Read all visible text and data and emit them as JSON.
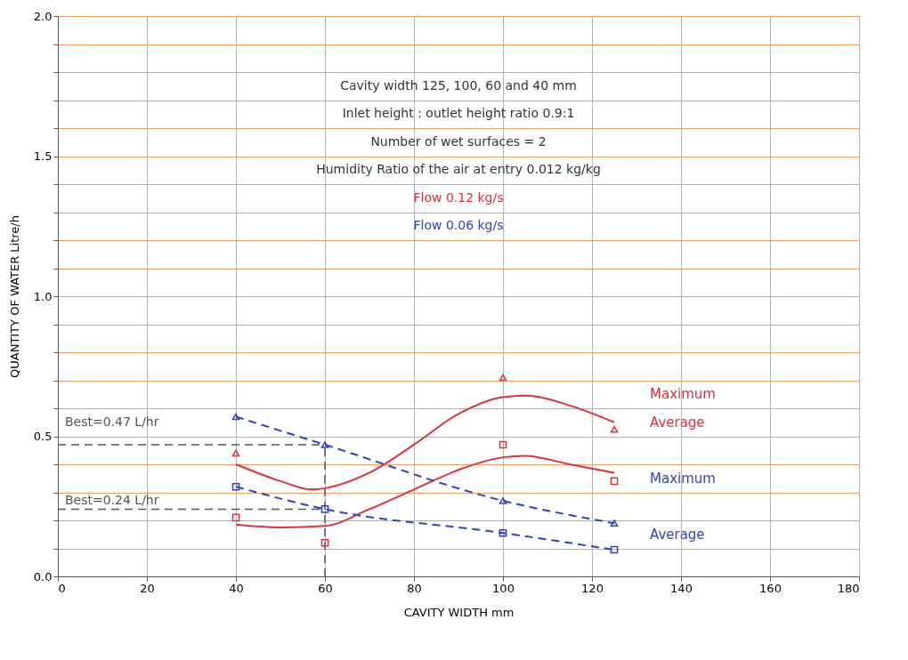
{
  "chart_data": {
    "type": "line",
    "xlabel": "CAVITY WIDTH   mm",
    "ylabel": "QUANTITY OF WATER   Litre/h",
    "annotations": [
      "Cavity width 125, 100, 60 and 40 mm",
      "Inlet height : outlet height ratio 0.9:1",
      "Number of wet surfaces = 2",
      "Humidity Ratio of the air at entry 0.012 kg/kg",
      "Flow  0.12 kg/s",
      "Flow  0.06 kg/s"
    ],
    "series": [
      {
        "type": "scatter",
        "marker": "triangle",
        "color": "#e0303c",
        "x": [
          40,
          100,
          125
        ],
        "values": [
          0.44,
          0.71,
          0.525
        ]
      },
      {
        "name": "Maximum",
        "color": "#e0303c",
        "line_style": "solid",
        "marker": "none",
        "x": [
          40,
          50,
          57,
          70,
          80,
          90,
          100,
          105,
          115,
          125
        ],
        "values": [
          0.4,
          0.34,
          0.31,
          0.37,
          0.47,
          0.58,
          0.64,
          0.645,
          0.61,
          0.55
        ]
      },
      {
        "type": "scatter",
        "marker": "square",
        "color": "#e0303c",
        "x": [
          40,
          60,
          100,
          125
        ],
        "values": [
          0.21,
          0.12,
          0.47,
          0.34
        ]
      },
      {
        "name": "Average",
        "color": "#e0303c",
        "line_style": "solid",
        "marker": "none",
        "x": [
          40,
          50,
          60,
          70,
          80,
          90,
          100,
          105,
          115,
          125
        ],
        "values": [
          0.185,
          0.175,
          0.18,
          0.24,
          0.31,
          0.38,
          0.425,
          0.43,
          0.4,
          0.37
        ]
      },
      {
        "name": "Maximum",
        "color": "#3040c0",
        "line_style": "dashed",
        "marker": "triangle",
        "x": [
          40,
          60,
          100,
          125
        ],
        "values": [
          0.57,
          0.47,
          0.27,
          0.19
        ]
      },
      {
        "name": "Average",
        "color": "#3040c0",
        "line_style": "dashed",
        "marker": "square",
        "x": [
          40,
          60,
          100,
          125
        ],
        "values": [
          0.32,
          0.24,
          0.155,
          0.095
        ]
      }
    ],
    "ref_lines": [
      {
        "axis": "y",
        "value": 0.47,
        "label": "Best=0.47 L/hr",
        "color": "#555555",
        "line_style": "dashed"
      },
      {
        "axis": "y",
        "value": 0.24,
        "label": "Best=0.24 L/hr",
        "color": "#555555",
        "line_style": "dashed"
      },
      {
        "axis": "x",
        "value": 60,
        "color": "#555555",
        "line_style": "dashed"
      }
    ],
    "xlim": [
      0,
      180
    ],
    "xticks": [
      0,
      20,
      40,
      60,
      80,
      100,
      120,
      140,
      160,
      180
    ],
    "ylim": [
      0,
      2
    ],
    "yticks": [
      {
        "value": 0,
        "label": "0.0"
      },
      {
        "value": 0.1,
        "label": null
      },
      {
        "value": 0.2,
        "label": null
      },
      {
        "value": 0.3,
        "label": null
      },
      {
        "value": 0.4,
        "label": null
      },
      {
        "value": 0.5,
        "label": "0.5"
      },
      {
        "value": 0.6,
        "label": null
      },
      {
        "value": 0.7,
        "label": null
      },
      {
        "value": 0.8,
        "label": null
      },
      {
        "value": 0.9,
        "label": null
      },
      {
        "value": 1,
        "label": "1.0"
      },
      {
        "value": 1.1,
        "label": null
      },
      {
        "value": 1.2,
        "label": null
      },
      {
        "value": 1.3,
        "label": null
      },
      {
        "value": 1.4,
        "label": null
      },
      {
        "value": 1.5,
        "label": "1.5"
      },
      {
        "value": 1.6,
        "label": null
      },
      {
        "value": 1.7,
        "label": null
      },
      {
        "value": 1.8,
        "label": null
      },
      {
        "value": 1.9,
        "label": null
      },
      {
        "value": 2,
        "label": "2.0"
      }
    ],
    "grid": true
  }
}
